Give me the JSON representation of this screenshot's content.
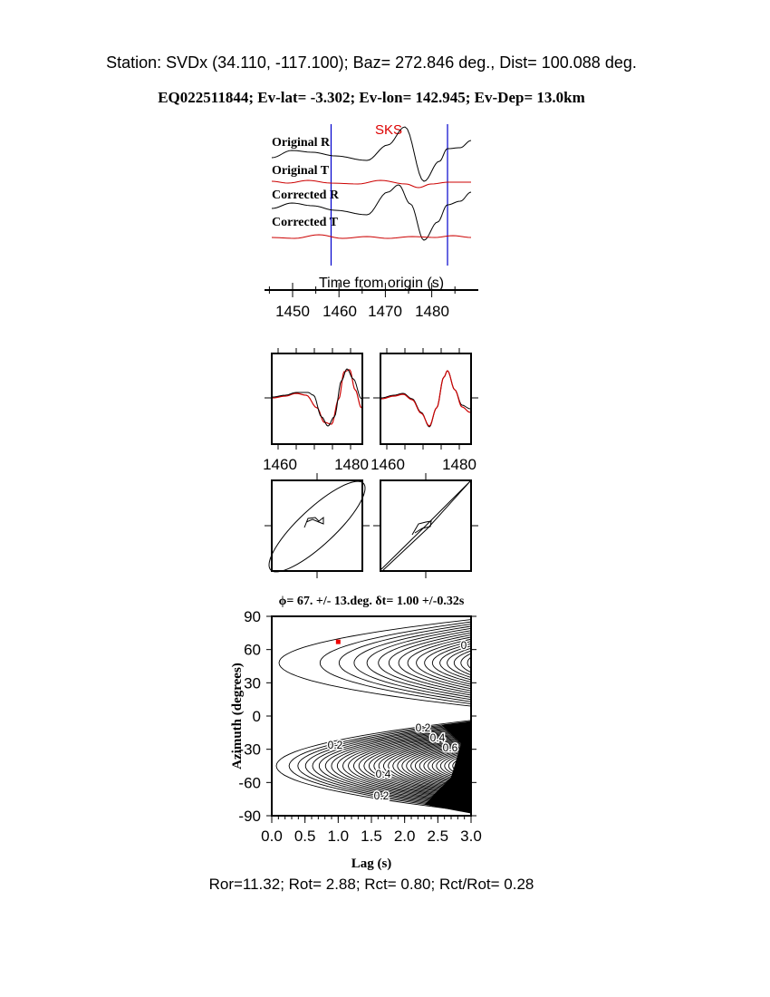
{
  "header": {
    "station_line": "Station: SVDx (34.110, -117.100); Baz=  272.846 deg., Dist=  100.088 deg.",
    "event_line": "EQ022511844; Ev-lat=  -3.302; Ev-lon= 142.945; Ev-Dep= 13.0km"
  },
  "chart_data": [
    {
      "type": "line",
      "panel": "seismograms",
      "phase_label": "SKS",
      "trace_labels": [
        "Original R",
        "Original T",
        "Corrected R",
        "Corrected T"
      ],
      "xlabel": "Time from origin (s)",
      "x_ticks": [
        "1450",
        "1460",
        "1470",
        "1480"
      ],
      "window_markers_s": [
        1458.3,
        1483.4
      ],
      "colors": {
        "radial": "#000000",
        "transverse": "#cc0000",
        "window": "#0000cc",
        "phase": "#dd0000"
      }
    },
    {
      "type": "line",
      "panel": "waveform-comparison",
      "x_ticks": [
        "1460",
        "1480",
        "1460",
        "1480"
      ]
    },
    {
      "type": "line",
      "panel": "particle-motion"
    },
    {
      "type": "heatmap",
      "panel": "energy-contour",
      "title": "ϕ= 67. +/- 13.deg. δt= 1.00 +/-0.32s",
      "xlabel": "Lag (s)",
      "ylabel": "Azimuth (degrees)",
      "xlim": [
        0,
        3
      ],
      "ylim": [
        -90,
        90
      ],
      "x_ticks": [
        "0.0",
        "0.5",
        "1.0",
        "1.5",
        "2.0",
        "2.5",
        "3.0"
      ],
      "y_ticks": [
        "90",
        "60",
        "30",
        "0",
        "-30",
        "-60",
        "-90"
      ],
      "contour_labels": [
        "0",
        "0.2",
        "0.4",
        "0.6",
        "0.2",
        "0.4",
        "0.2"
      ],
      "best_fit": {
        "lag": 1.0,
        "azimuth": 67
      },
      "colors": {
        "best_fit": "#ee0000"
      }
    }
  ],
  "footer": {
    "ratios": "Ror=11.32; Rot= 2.88; Rct= 0.80; Rct/Rot= 0.28"
  }
}
